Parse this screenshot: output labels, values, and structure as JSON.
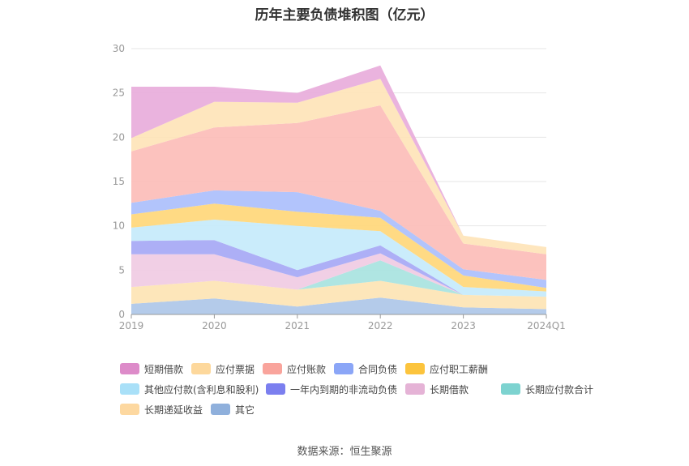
{
  "title": "历年主要负债堆积图（亿元）",
  "source": "数据来源：恒生聚源",
  "chart_data": {
    "type": "area",
    "stacked": true,
    "categories": [
      "2019",
      "2020",
      "2021",
      "2022",
      "2023",
      "2024Q1"
    ],
    "ylim": [
      0,
      30
    ],
    "yticks": [
      0,
      5,
      10,
      15,
      20,
      25,
      30
    ],
    "grid": true,
    "legend_position": "bottom",
    "series": [
      {
        "name": "其它",
        "color": "#aec7e8",
        "legend_color": "#8fb0dc",
        "values": [
          1.2,
          1.8,
          0.9,
          1.9,
          0.8,
          0.6
        ]
      },
      {
        "name": "长期递延收益",
        "color": "#fde4b4",
        "legend_color": "#fdd8a0",
        "values": [
          1.9,
          2.0,
          1.9,
          1.9,
          1.4,
          1.4
        ]
      },
      {
        "name": "长期应付款合计",
        "color": "#a8e3e0",
        "legend_color": "#7dd3d0",
        "values": [
          0,
          0,
          0,
          2.3,
          0,
          0
        ]
      },
      {
        "name": "长期借款",
        "color": "#f0cbe3",
        "legend_color": "#e5b3d6",
        "values": [
          3.7,
          3.0,
          1.4,
          0.8,
          0,
          0
        ]
      },
      {
        "name": "一年内到期的非流动负债",
        "color": "#a6a8f5",
        "legend_color": "#7b7fef",
        "values": [
          1.5,
          1.6,
          0.8,
          0.9,
          0,
          0
        ]
      },
      {
        "name": "其他应付款(含利息和股利)",
        "color": "#c5eafb",
        "legend_color": "#a9e0f8",
        "values": [
          1.5,
          2.3,
          5.0,
          1.6,
          0.9,
          0.6
        ]
      },
      {
        "name": "应付职工薪酬",
        "color": "#ffd77a",
        "legend_color": "#fcc43d",
        "values": [
          1.5,
          1.8,
          1.6,
          1.5,
          1.3,
          0.4
        ]
      },
      {
        "name": "合同负债",
        "color": "#abbffc",
        "legend_color": "#8ba6f7",
        "values": [
          1.3,
          1.5,
          2.2,
          0.8,
          0.7,
          0.9
        ]
      },
      {
        "name": "应付账款",
        "color": "#fcbdb8",
        "legend_color": "#f9a49c",
        "values": [
          5.8,
          7.1,
          7.8,
          11.9,
          2.9,
          2.9
        ]
      },
      {
        "name": "应付票据",
        "color": "#fee4b8",
        "legend_color": "#fdd89c",
        "values": [
          1.5,
          2.9,
          2.3,
          3.0,
          0.9,
          0.8
        ]
      },
      {
        "name": "短期借款",
        "color": "#e8addb",
        "legend_color": "#dd8bc9",
        "values": [
          5.8,
          1.7,
          1.1,
          1.5,
          0,
          0
        ]
      }
    ],
    "legend_order": [
      "短期借款",
      "应付票据",
      "应付账款",
      "合同负债",
      "应付职工薪酬",
      "其他应付款(含利息和股利)",
      "一年内到期的非流动负债",
      "长期借款",
      "长期应付款合计",
      "长期递延收益",
      "其它"
    ]
  }
}
